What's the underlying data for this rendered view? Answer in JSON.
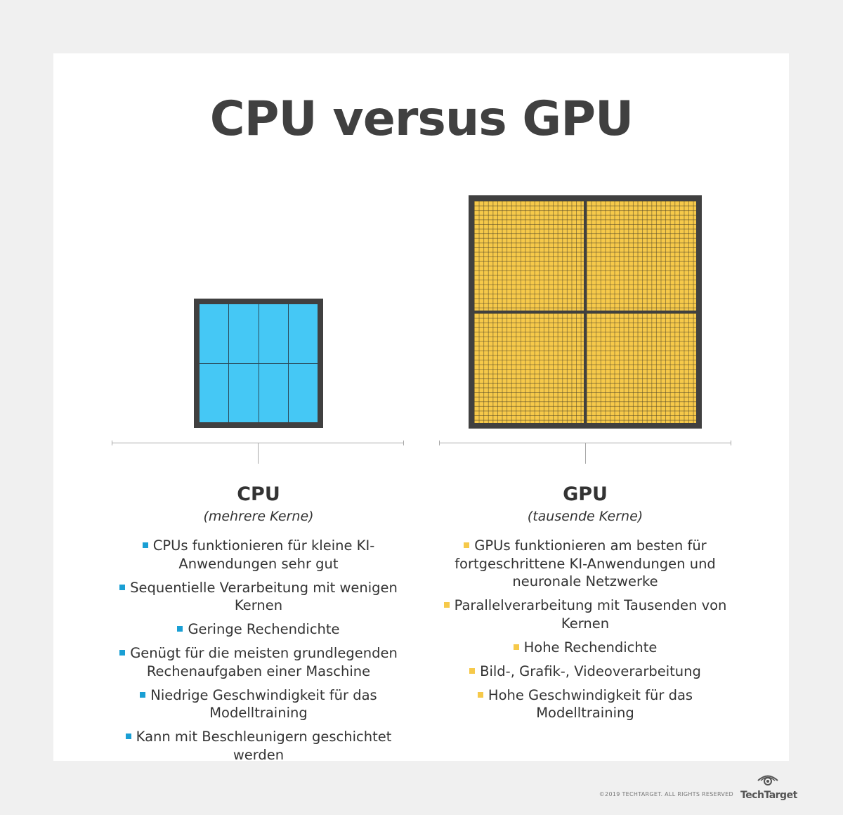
{
  "title": "CPU versus GPU",
  "cpu": {
    "heading": "CPU",
    "subtitle": "(mehrere Kerne)",
    "cores": 8,
    "bullets": [
      "CPUs funktionieren für kleine KI-Anwendungen sehr gut",
      "Sequentielle Verarbeitung mit wenigen Kernen",
      "Geringe Rechendichte",
      "Genügt für die meisten grundlegenden Rechenaufgaben einer Maschine",
      "Niedrige Geschwindigkeit für das Modelltraining",
      "Kann mit Beschleunigern geschichtet werden"
    ],
    "color": "#45c8f5",
    "bullet_color": "#1a9fd4"
  },
  "gpu": {
    "heading": "GPU",
    "subtitle": "(tausende Kerne)",
    "bullets": [
      "GPUs funktionieren am besten für fortgeschrittene KI-Anwendungen und neuronale Netzwerke",
      "Parallelverarbeitung mit Tausenden von Kernen",
      "Hohe Rechendichte",
      "Bild-, Grafik-, Videoverarbeitung",
      "Hohe Geschwindigkeit für das Modelltraining"
    ],
    "color": "#f6c94a"
  },
  "footer": {
    "copyright": "©2019 TECHTARGET. ALL RIGHTS RESERVED",
    "logo": "TechTarget"
  }
}
